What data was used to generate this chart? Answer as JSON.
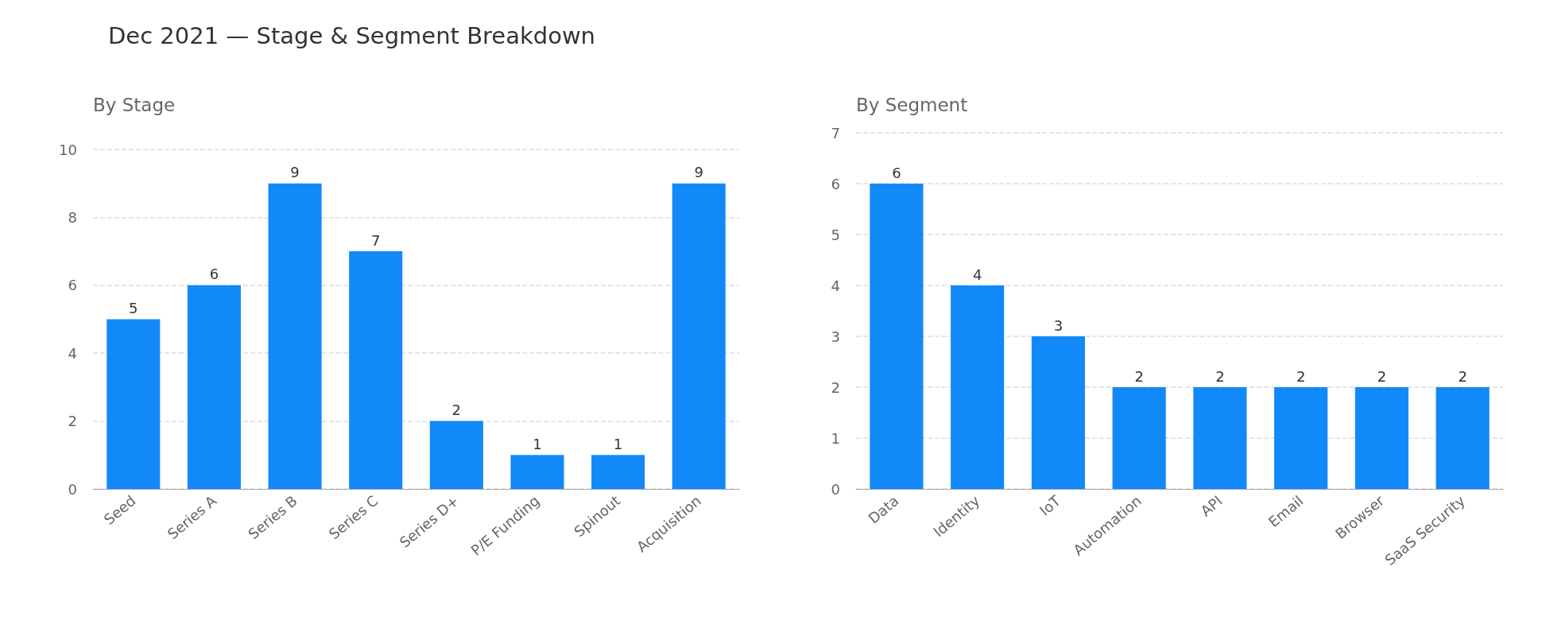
{
  "chart_data": [
    {
      "type": "bar",
      "title": "Dec 2021 — Stage & Segment Breakdown",
      "subtitle": "By Stage",
      "categories": [
        "Seed",
        "Series A",
        "Series B",
        "Series C",
        "Series D+",
        "P/E Funding",
        "Spinout",
        "Acquisition"
      ],
      "values": [
        5,
        6,
        9,
        7,
        2,
        1,
        1,
        9
      ],
      "color": "#1289f8",
      "ylim": [
        0,
        10
      ],
      "yticks": [
        0,
        2,
        4,
        6,
        8,
        10
      ],
      "grid": "y",
      "data_labels": true
    },
    {
      "type": "bar",
      "subtitle": "By Segment",
      "categories": [
        "Data",
        "Identity",
        "IoT",
        "Automation",
        "API",
        "Email",
        "Browser",
        "SaaS Security"
      ],
      "values": [
        6,
        4,
        3,
        2,
        2,
        2,
        2,
        2
      ],
      "color": "#1289f8",
      "ylim": [
        0,
        7
      ],
      "yticks": [
        0,
        1,
        2,
        3,
        4,
        5,
        6,
        7
      ],
      "grid": "y",
      "data_labels": true
    }
  ]
}
